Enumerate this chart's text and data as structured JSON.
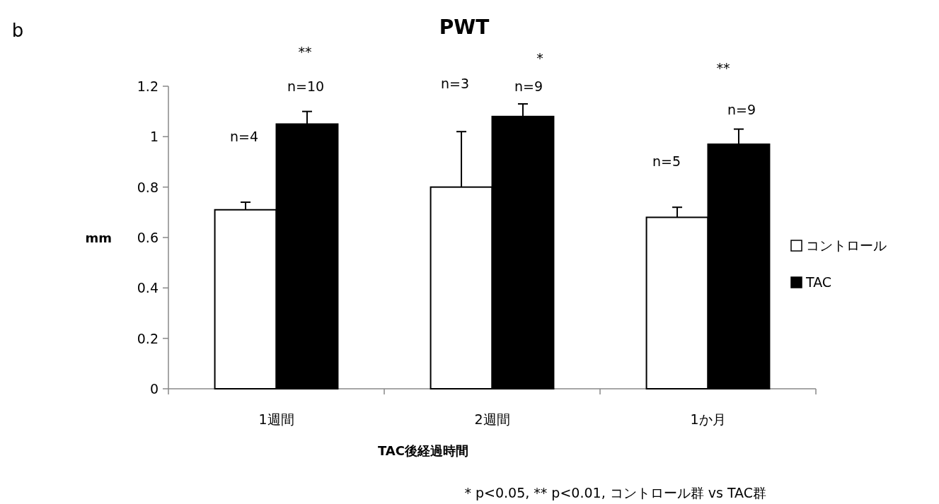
{
  "chart_data": {
    "type": "bar",
    "title": "PWT",
    "xlabel": "TAC後経過時間",
    "ylabel": "mm",
    "categories": [
      "1週間",
      "2週間",
      "1か月"
    ],
    "series": [
      {
        "name": "コントロール",
        "color": "#ffffff",
        "values": [
          0.71,
          0.8,
          0.68
        ],
        "errors": [
          [
            0.71,
            0.74
          ],
          [
            0.8,
            1.02
          ],
          [
            0.68,
            0.72
          ]
        ]
      },
      {
        "name": "TAC",
        "color": "#000000",
        "values": [
          1.05,
          1.08,
          0.97
        ],
        "errors": [
          [
            1.05,
            1.1
          ],
          [
            1.08,
            1.13
          ],
          [
            0.97,
            1.03
          ]
        ]
      }
    ],
    "ylim": [
      0,
      1.2
    ],
    "yticks": [
      0,
      0.2,
      0.4,
      0.6,
      0.8,
      1,
      1.2
    ],
    "grid": false,
    "legend": "right",
    "annotations": [
      "b",
      "**",
      "n=10",
      "n=4",
      "n=3",
      "*",
      "n=9",
      "**",
      "n=9",
      "n=5",
      "* p<0.05, ** p<0.01, コントロール群 vs TAC群"
    ]
  }
}
